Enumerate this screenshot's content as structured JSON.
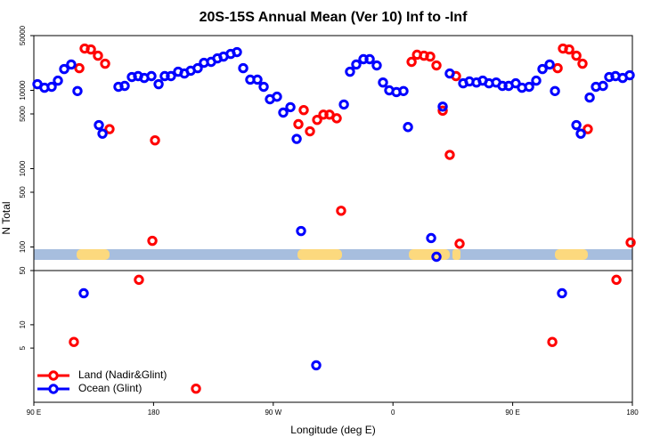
{
  "chart_data": [
    {
      "type": "scatter",
      "title": "20S-15S Annual Mean (Ver 10)   Inf to -Inf",
      "ylabel": "N Total",
      "log": true,
      "xlim": [
        90,
        540
      ],
      "ylim": [
        50,
        50000
      ],
      "yticks": [
        100,
        500,
        1000,
        5000,
        10000,
        50000
      ],
      "series": [
        {
          "color": "#ff0000",
          "x": [
            124.2,
            128.2,
            132.9,
            138.2,
            143.6,
            146.9,
            179.1,
            181.1,
            288.9,
            292.9,
            297.6,
            303.0,
            307.7,
            312.3,
            317.7,
            321.0,
            374.0,
            378.1,
            383.3,
            388.0,
            392.7,
            397.4,
            402.7,
            407.4,
            410.1,
            483.8,
            487.8,
            492.5,
            497.9,
            502.5,
            506.5,
            538.7
          ],
          "values": [
            19200,
            34200,
            33300,
            27700,
            21900,
            3200,
            120,
            2300,
            3700,
            5600,
            3000,
            4200,
            4900,
            4900,
            4400,
            290,
            23100,
            28500,
            27700,
            27000,
            20800,
            5500,
            1500,
            15200,
            110,
            19200,
            34200,
            33300,
            27700,
            21900,
            3200,
            114
          ]
        },
        {
          "color": "#0000ff",
          "x": [
            92.7,
            98.0,
            103.4,
            108.1,
            112.8,
            118.1,
            122.8,
            138.9,
            141.6,
            153.6,
            158.3,
            163.7,
            168.4,
            173.0,
            178.4,
            183.8,
            188.4,
            193.1,
            198.5,
            203.2,
            207.9,
            213.2,
            217.9,
            223.3,
            228.0,
            232.6,
            238.0,
            242.7,
            247.4,
            252.7,
            258.1,
            262.8,
            267.5,
            272.8,
            277.5,
            282.9,
            287.6,
            290.9,
            323.1,
            327.7,
            332.4,
            337.8,
            342.5,
            347.8,
            352.5,
            357.2,
            362.6,
            367.9,
            371.3,
            388.7,
            392.7,
            397.4,
            402.7,
            412.8,
            417.5,
            422.8,
            427.5,
            432.2,
            437.6,
            442.3,
            447.0,
            452.3,
            457.0,
            462.4,
            467.7,
            472.4,
            477.8,
            481.8,
            497.9,
            501.2,
            507.9,
            512.6,
            517.9,
            522.6,
            527.3,
            532.7,
            538.0
          ],
          "values": [
            12000,
            10800,
            11100,
            13300,
            18700,
            21400,
            9800,
            3600,
            2800,
            11100,
            11400,
            14800,
            15200,
            14400,
            15200,
            12000,
            15200,
            15200,
            17300,
            16400,
            17800,
            19200,
            22500,
            23100,
            25600,
            27000,
            29200,
            30800,
            19200,
            13700,
            13700,
            11100,
            7700,
            8300,
            5200,
            6100,
            2400,
            160,
            6600,
            17300,
            21400,
            25000,
            25000,
            20800,
            12600,
            10000,
            9500,
            9800,
            3400,
            130,
            75,
            6200,
            16400,
            12300,
            13000,
            12600,
            13300,
            12300,
            12600,
            11400,
            11400,
            12300,
            10800,
            11100,
            13300,
            18700,
            21400,
            9800,
            3600,
            2800,
            8100,
            11100,
            11400,
            14800,
            15200,
            14400,
            15600
          ]
        }
      ]
    },
    {
      "type": "scatter",
      "xlabel": "Longitude (deg E)",
      "log": true,
      "legend": "lower left",
      "xlim": [
        90,
        540
      ],
      "ylim": [
        1,
        50
      ],
      "yticks": [
        5,
        10,
        50
      ],
      "xticks": [
        {
          "value": 90,
          "label": "90 E"
        },
        180,
        {
          "value": 270,
          "label": "90 W"
        },
        {
          "value": 360,
          "label": "0"
        },
        {
          "value": 450,
          "label": "90 E"
        },
        {
          "value": 540,
          "label": "180"
        }
      ],
      "series": [
        {
          "name": "Land (Nadir&Glint)",
          "color": "#ff0000",
          "x": [
            120.1,
            169.0,
            211.9,
            479.8,
            528.0
          ],
          "values": [
            6.0,
            38,
            1.5,
            6.0,
            38
          ]
        },
        {
          "name": "Ocean (Glint)",
          "color": "#0000ff",
          "x": [
            127.5,
            302.3,
            487.1
          ],
          "values": [
            25.5,
            3.0,
            25.5
          ]
        }
      ]
    }
  ]
}
